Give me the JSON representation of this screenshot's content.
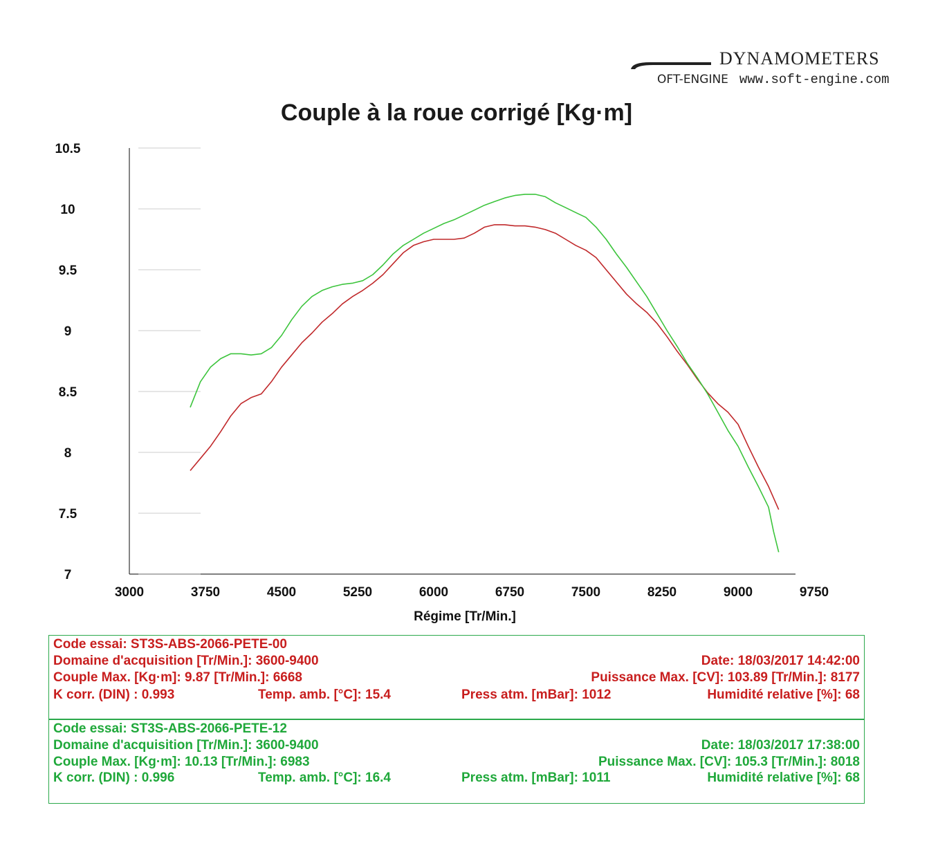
{
  "brand": {
    "name": "DYNAMOMETERS",
    "logo_text": "OFT-ENGINE",
    "website": "www.soft-engine.com"
  },
  "chart_data": {
    "type": "line",
    "title": "Couple à la roue corrigé [Kg·m]",
    "xlabel": "Régime [Tr/Min.]",
    "ylabel": "",
    "xlim": [
      3000,
      9750
    ],
    "ylim": [
      7,
      10.5
    ],
    "x_ticks": [
      "3000",
      "3750",
      "4500",
      "5250",
      "6000",
      "6750",
      "7500",
      "8250",
      "9000",
      "9750"
    ],
    "y_ticks": [
      "10.5",
      "10",
      "9.5",
      "9",
      "8.5",
      "8",
      "7.5",
      "7"
    ],
    "grid": false,
    "series": [
      {
        "color": "#c0282a",
        "x": [
          3600,
          3700,
          3800,
          3900,
          4000,
          4100,
          4200,
          4300,
          4400,
          4500,
          4600,
          4700,
          4800,
          4900,
          5000,
          5100,
          5200,
          5300,
          5400,
          5500,
          5600,
          5700,
          5800,
          5900,
          6000,
          6100,
          6200,
          6300,
          6400,
          6500,
          6600,
          6700,
          6800,
          6900,
          7000,
          7100,
          7200,
          7300,
          7400,
          7500,
          7600,
          7700,
          7800,
          7900,
          8000,
          8100,
          8200,
          8300,
          8400,
          8500,
          8600,
          8700,
          8800,
          8900,
          9000,
          9100,
          9200,
          9300,
          9400
        ],
        "values": [
          7.85,
          7.95,
          8.05,
          8.17,
          8.3,
          8.4,
          8.45,
          8.48,
          8.58,
          8.7,
          8.8,
          8.9,
          8.98,
          9.07,
          9.14,
          9.22,
          9.28,
          9.33,
          9.39,
          9.46,
          9.55,
          9.64,
          9.7,
          9.73,
          9.75,
          9.75,
          9.75,
          9.76,
          9.8,
          9.85,
          9.87,
          9.87,
          9.86,
          9.86,
          9.85,
          9.83,
          9.8,
          9.75,
          9.7,
          9.66,
          9.6,
          9.5,
          9.4,
          9.3,
          9.22,
          9.15,
          9.06,
          8.95,
          8.83,
          8.72,
          8.6,
          8.49,
          8.4,
          8.33,
          8.23,
          8.05,
          7.88,
          7.72,
          7.53
        ]
      },
      {
        "color": "#3cc43c",
        "x": [
          3600,
          3700,
          3800,
          3900,
          4000,
          4100,
          4200,
          4300,
          4400,
          4500,
          4600,
          4700,
          4800,
          4900,
          5000,
          5100,
          5200,
          5300,
          5400,
          5500,
          5600,
          5700,
          5800,
          5900,
          6000,
          6100,
          6200,
          6300,
          6400,
          6500,
          6600,
          6700,
          6800,
          6900,
          7000,
          7100,
          7200,
          7300,
          7400,
          7500,
          7600,
          7700,
          7800,
          7900,
          8000,
          8100,
          8200,
          8300,
          8400,
          8500,
          8600,
          8700,
          8800,
          8900,
          9000,
          9100,
          9200,
          9300,
          9350,
          9400
        ],
        "values": [
          8.37,
          8.58,
          8.7,
          8.77,
          8.81,
          8.81,
          8.8,
          8.81,
          8.86,
          8.96,
          9.09,
          9.2,
          9.28,
          9.33,
          9.36,
          9.38,
          9.39,
          9.41,
          9.46,
          9.54,
          9.63,
          9.7,
          9.75,
          9.8,
          9.84,
          9.88,
          9.91,
          9.95,
          9.99,
          10.03,
          10.06,
          10.09,
          10.11,
          10.12,
          10.12,
          10.1,
          10.05,
          10.01,
          9.97,
          9.93,
          9.85,
          9.75,
          9.63,
          9.52,
          9.4,
          9.28,
          9.14,
          9.0,
          8.87,
          8.73,
          8.61,
          8.48,
          8.33,
          8.18,
          8.05,
          7.88,
          7.72,
          7.55,
          7.35,
          7.18
        ]
      }
    ]
  },
  "runs": [
    {
      "color": "#c81e1e",
      "code": "Code essai: ST3S-ABS-2066-PETE-00",
      "domaine": "Domaine d'acquisition [Tr/Min.]: 3600-9400",
      "date": "Date: 18/03/2017   14:42:00",
      "couple": "Couple Max. [Kg·m]: 9.87   [Tr/Min.]: 6668",
      "puissance": "Puissance Max. [CV]: 103.89   [Tr/Min.]: 8177",
      "kcorr": "K corr. (DIN) : 0.993",
      "temp": "Temp. amb. [°C]: 15.4",
      "press": "Press atm. [mBar]: 1012",
      "humid": "Humidité relative [%]: 68"
    },
    {
      "color": "#1fa83a",
      "code": "Code essai: ST3S-ABS-2066-PETE-12",
      "domaine": "Domaine d'acquisition [Tr/Min.]: 3600-9400",
      "date": "Date: 18/03/2017   17:38:00",
      "couple": "Couple Max. [Kg·m]: 10.13   [Tr/Min.]: 6983",
      "puissance": "Puissance Max. [CV]: 105.3   [Tr/Min.]: 8018",
      "kcorr": "K corr. (DIN) : 0.996",
      "temp": "Temp. amb. [°C]: 16.4",
      "press": "Press atm. [mBar]: 1011",
      "humid": "Humidité relative [%]: 68"
    }
  ]
}
